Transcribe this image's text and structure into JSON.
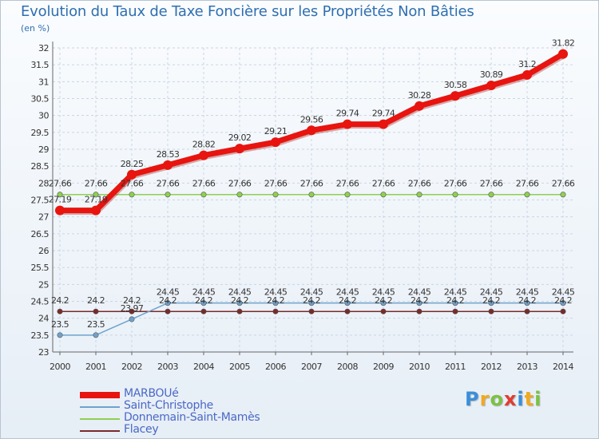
{
  "chart_data": {
    "type": "line",
    "title": "Evolution du Taux de Taxe Foncière sur les Propriétés Non Bâties",
    "unit_label": "(en %)",
    "xlabel": "",
    "ylabel": "",
    "x": [
      2000,
      2001,
      2002,
      2003,
      2004,
      2005,
      2006,
      2007,
      2008,
      2009,
      2010,
      2011,
      2012,
      2013,
      2014
    ],
    "ylim": [
      23,
      32
    ],
    "ytick_step": 0.5,
    "grid": true,
    "legend_position": "bottom-left",
    "series": [
      {
        "name": "MARBOUé",
        "color": "#e8140f",
        "values": [
          27.19,
          27.19,
          28.25,
          28.53,
          28.82,
          29.02,
          29.21,
          29.56,
          29.74,
          29.74,
          30.28,
          30.58,
          30.89,
          31.2,
          31.82
        ],
        "labels": [
          "27.19",
          "27.19",
          "28.25",
          "28.53",
          "28.82",
          "29.02",
          "29.21",
          "29.56",
          "29.74",
          "29.74",
          "30.28",
          "30.58",
          "30.89",
          "31.2",
          "31.82"
        ]
      },
      {
        "name": "Saint-Christophe",
        "color": "#6fa2cc",
        "values": [
          23.5,
          23.5,
          23.97,
          24.45,
          24.45,
          24.45,
          24.45,
          24.45,
          24.45,
          24.45,
          24.45,
          24.45,
          24.45,
          24.45,
          24.45
        ],
        "labels": [
          "23.5",
          "23.5",
          "23.97",
          "24.45",
          "24.45",
          "24.45",
          "24.45",
          "24.45",
          "24.45",
          "24.45",
          "24.45",
          "24.45",
          "24.45",
          "24.45",
          "24.45"
        ]
      },
      {
        "name": "Donnemain-Saint-Mamès",
        "color": "#8fd050",
        "values": [
          27.66,
          27.66,
          27.66,
          27.66,
          27.66,
          27.66,
          27.66,
          27.66,
          27.66,
          27.66,
          27.66,
          27.66,
          27.66,
          27.66,
          27.66
        ],
        "labels": [
          "27.66",
          "27.66",
          "27.66",
          "27.66",
          "27.66",
          "27.66",
          "27.66",
          "27.66",
          "27.66",
          "27.66",
          "27.66",
          "27.66",
          "27.66",
          "27.66",
          "27.66"
        ]
      },
      {
        "name": "Flacey",
        "color": "#7a2a2a",
        "values": [
          24.2,
          24.2,
          24.2,
          24.2,
          24.2,
          24.2,
          24.2,
          24.2,
          24.2,
          24.2,
          24.2,
          24.2,
          24.2,
          24.2,
          24.2
        ],
        "labels": [
          "24.2",
          "24.2",
          "24.2",
          "24.2",
          "24.2",
          "24.2",
          "24.2",
          "24.2",
          "24.2",
          "24.2",
          "24.2",
          "24.2",
          "24.2",
          "24.2",
          "24.2"
        ]
      }
    ]
  },
  "logo": {
    "letters": [
      "P",
      "r",
      "o",
      "x",
      "i",
      "t",
      "i"
    ],
    "colors": [
      "#3b8ed8",
      "#f2a91e",
      "#7cc242",
      "#e23c2e",
      "#3b8ed8",
      "#f2a91e",
      "#7cc242"
    ]
  }
}
